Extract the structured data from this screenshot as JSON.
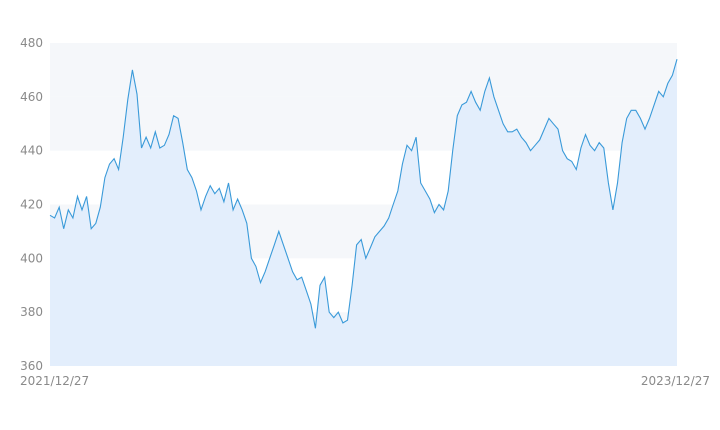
{
  "chart_data": {
    "type": "area",
    "title": "",
    "xlabel": "",
    "ylabel": "",
    "x_range": [
      "2021/12/27",
      "2023/12/27"
    ],
    "x_tick_labels": [
      "2021/12/27",
      "2023/12/27"
    ],
    "ylim": [
      360,
      480
    ],
    "y_ticks": [
      360,
      380,
      400,
      420,
      440,
      460,
      480
    ],
    "grid": "alternating horizontal bands",
    "line_color": "#3a9ad9",
    "fill_color": "#e3eefc",
    "band_color": "#f5f7fa",
    "values": [
      416,
      415,
      419,
      411,
      418,
      415,
      423,
      418,
      423,
      411,
      413,
      419,
      430,
      435,
      437,
      433,
      445,
      459,
      470,
      461,
      441,
      445,
      441,
      447,
      441,
      442,
      446,
      453,
      452,
      443,
      433,
      430,
      425,
      418,
      423,
      427,
      424,
      426,
      421,
      428,
      418,
      422,
      418,
      413,
      400,
      397,
      391,
      395,
      400,
      405,
      410,
      405,
      400,
      395,
      392,
      393,
      388,
      383,
      374,
      390,
      393,
      380,
      378,
      380,
      376,
      377,
      390,
      405,
      407,
      400,
      404,
      408,
      410,
      412,
      415,
      420,
      425,
      435,
      442,
      440,
      445,
      428,
      425,
      422,
      417,
      420,
      418,
      425,
      440,
      453,
      457,
      458,
      462,
      458,
      455,
      462,
      467,
      460,
      455,
      450,
      447,
      447,
      448,
      445,
      443,
      440,
      442,
      444,
      448,
      452,
      450,
      448,
      440,
      437,
      436,
      433,
      441,
      446,
      442,
      440,
      443,
      441,
      428,
      418,
      428,
      443,
      452,
      455,
      455,
      452,
      448,
      452,
      457,
      462,
      460,
      465,
      468,
      474
    ]
  }
}
